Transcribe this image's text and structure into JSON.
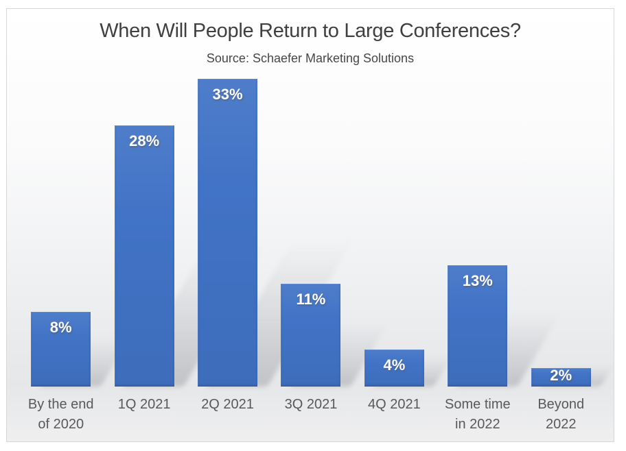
{
  "slide": {
    "title": "When Will People Return to Large Conferences?",
    "subtitle": "Source: Schaefer Marketing Solutions"
  },
  "chart_data": {
    "type": "bar",
    "title": "When Will People Return to Large Conferences?",
    "subtitle": "Source: Schaefer Marketing Solutions",
    "categories": [
      "By the end of 2020",
      "1Q 2021",
      "2Q 2021",
      "3Q 2021",
      "4Q 2021",
      "Some time in 2022",
      "Beyond 2022"
    ],
    "category_lines": [
      [
        "By the end",
        "of 2020"
      ],
      [
        "1Q 2021"
      ],
      [
        "2Q 2021"
      ],
      [
        "3Q 2021"
      ],
      [
        "4Q 2021"
      ],
      [
        "Some time",
        "in 2022"
      ],
      [
        "Beyond",
        "2022"
      ]
    ],
    "values": [
      8,
      28,
      33,
      11,
      4,
      13,
      2
    ],
    "value_labels": [
      "8%",
      "28%",
      "33%",
      "11%",
      "4%",
      "13%",
      "2%"
    ],
    "unit": "%",
    "ylim": [
      0,
      34
    ],
    "grid": false,
    "legend": false,
    "axis_lines": false,
    "value_label_position": "inside-top",
    "colors": {
      "bar": "#4173c6",
      "value_label": "#ffffff",
      "category_label": "#595959",
      "title": "#3f3f3f",
      "subtitle": "#474747",
      "frame_border": "#d6d7d9"
    }
  }
}
